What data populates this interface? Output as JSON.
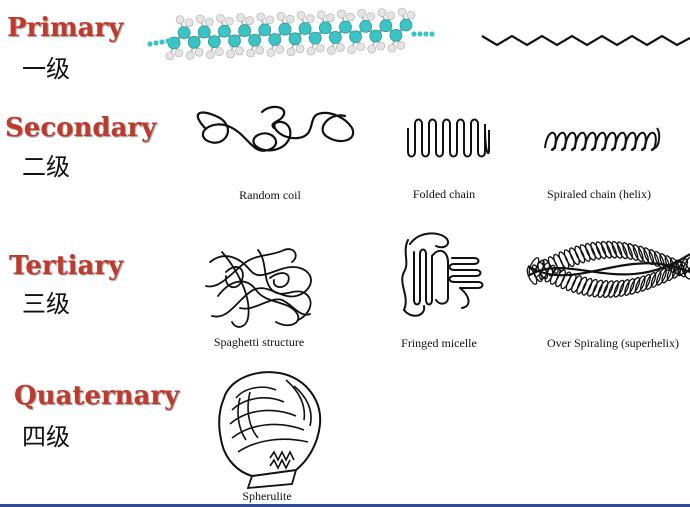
{
  "levels": {
    "primary": {
      "en": "Primary",
      "zh": "一级"
    },
    "secondary": {
      "en": "Secondary",
      "zh": "二级"
    },
    "tertiary": {
      "en": "Tertiary",
      "zh": "三级"
    },
    "quaternary": {
      "en": "Quaternary",
      "zh": "四级"
    }
  },
  "captions": {
    "random_coil": "Random coil",
    "folded_chain": "Folded chain",
    "spiraled_chain": "Spiraled chain (helix)",
    "spaghetti": "Spaghetti structure",
    "fringed_micelle": "Fringed micelle",
    "over_spiraling": "Over Spiraling (superhelix)",
    "spherulite": "Spherulite"
  },
  "colors": {
    "heading": "#c0392b",
    "carbon": "#3cc3c3",
    "hydrogen": "#e4e4e4",
    "ink": "#111111",
    "rule": "#2c4e8a"
  }
}
